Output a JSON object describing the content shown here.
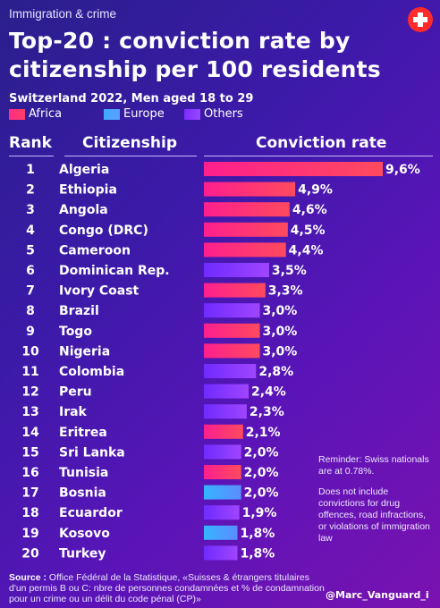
{
  "header": {
    "topline": "Immigration & crime",
    "title_line1": "Top-20 : conviction rate by",
    "title_line2": "citizenship per 100 residents",
    "subtitle": "Switzerland 2022, Men aged 18 to 29",
    "flag_icon": "swiss-flag-icon"
  },
  "colors": {
    "Africa": "#ff2d84",
    "Europe": "#3fa8ff",
    "Others": "#8a3bff",
    "background": "#3b1aa8"
  },
  "legend": [
    {
      "label": "Africa"
    },
    {
      "label": "Europe"
    },
    {
      "label": "Others"
    }
  ],
  "columns": {
    "rank": "Rank",
    "citizenship": "Citizenship",
    "rate": "Conviction rate"
  },
  "chart_data": {
    "type": "bar",
    "orientation": "horizontal",
    "title": "Top-20 : conviction rate by citizenship per 100 residents",
    "unit": "%",
    "xlim": [
      0,
      9.6
    ],
    "rows": [
      {
        "rank": "1",
        "name": "Algeria",
        "value": 9.6,
        "label": "9,6%",
        "group": "Africa"
      },
      {
        "rank": "2",
        "name": "Ethiopia",
        "value": 4.9,
        "label": "4,9%",
        "group": "Africa"
      },
      {
        "rank": "3",
        "name": "Angola",
        "value": 4.6,
        "label": "4,6%",
        "group": "Africa"
      },
      {
        "rank": "4",
        "name": "Congo (DRC)",
        "value": 4.5,
        "label": "4,5%",
        "group": "Africa"
      },
      {
        "rank": "5",
        "name": "Cameroon",
        "value": 4.4,
        "label": "4,4%",
        "group": "Africa"
      },
      {
        "rank": "6",
        "name": "Dominican Rep.",
        "value": 3.5,
        "label": "3,5%",
        "group": "Others"
      },
      {
        "rank": "7",
        "name": "Ivory Coast",
        "value": 3.3,
        "label": "3,3%",
        "group": "Africa"
      },
      {
        "rank": "8",
        "name": "Brazil",
        "value": 3.0,
        "label": "3,0%",
        "group": "Others"
      },
      {
        "rank": "9",
        "name": "Togo",
        "value": 3.0,
        "label": "3,0%",
        "group": "Africa"
      },
      {
        "rank": "10",
        "name": "Nigeria",
        "value": 3.0,
        "label": "3,0%",
        "group": "Africa"
      },
      {
        "rank": "11",
        "name": "Colombia",
        "value": 2.8,
        "label": "2,8%",
        "group": "Others"
      },
      {
        "rank": "12",
        "name": "Peru",
        "value": 2.4,
        "label": "2,4%",
        "group": "Others"
      },
      {
        "rank": "13",
        "name": "Irak",
        "value": 2.3,
        "label": "2,3%",
        "group": "Others"
      },
      {
        "rank": "14",
        "name": "Eritrea",
        "value": 2.1,
        "label": "2,1%",
        "group": "Africa"
      },
      {
        "rank": "15",
        "name": "Sri Lanka",
        "value": 2.0,
        "label": "2,0%",
        "group": "Others"
      },
      {
        "rank": "16",
        "name": "Tunisia",
        "value": 2.0,
        "label": "2,0%",
        "group": "Africa"
      },
      {
        "rank": "17",
        "name": "Bosnia",
        "value": 2.0,
        "label": "2,0%",
        "group": "Europe"
      },
      {
        "rank": "18",
        "name": "Ecuardor",
        "value": 1.9,
        "label": "1,9%",
        "group": "Others"
      },
      {
        "rank": "19",
        "name": "Kosovo",
        "value": 1.8,
        "label": "1,8%",
        "group": "Europe"
      },
      {
        "rank": "20",
        "name": "Turkey",
        "value": 1.8,
        "label": "1,8%",
        "group": "Others"
      }
    ]
  },
  "notes": {
    "reminder": "Reminder: Swiss nationals are at 0.78%.",
    "exclusion": "Does not include convictions for drug offences, road infractions, or violations of immigration law"
  },
  "footer": {
    "source_label": "Source :",
    "source_text": " Office Fédéral de la Statistique, «Suisses & étrangers titulaires d'un permis B ou C: nbre de personnes condamnées et % de condamnation pour un crime ou un délit du code pénal (CP)»",
    "handle": "@Marc_Vanguard_i"
  }
}
